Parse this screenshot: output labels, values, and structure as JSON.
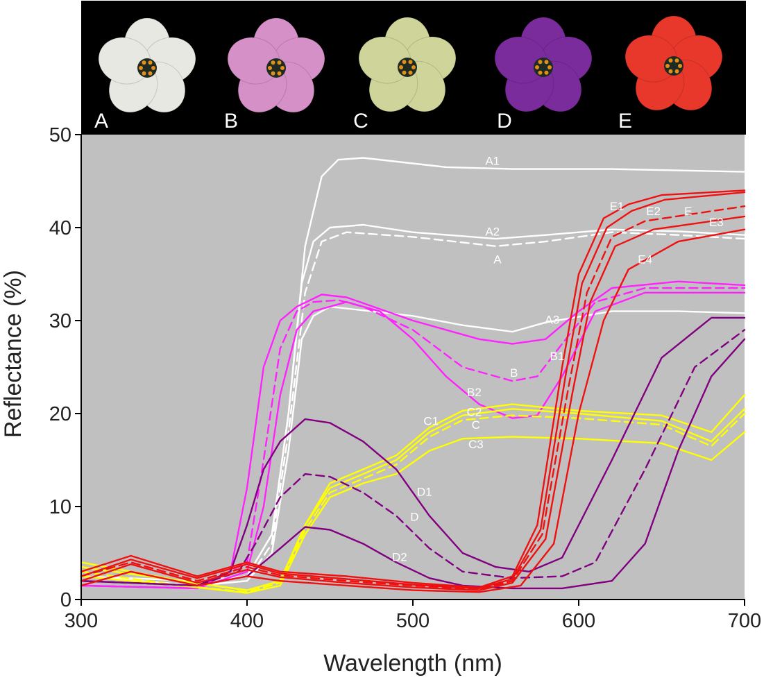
{
  "chart_data": {
    "type": "line",
    "xlabel": "Wavelength (nm)",
    "ylabel": "Reflectance (%)",
    "xlim": [
      300,
      700
    ],
    "ylim": [
      0,
      50
    ],
    "xticks": [
      "300",
      "400",
      "500",
      "600",
      "700"
    ],
    "yticks": [
      "0",
      "10",
      "20",
      "30",
      "40",
      "50"
    ],
    "grid": false,
    "background": "#c0c0c0",
    "panel_labels": [
      "A",
      "B",
      "C",
      "D",
      "E"
    ],
    "flower_colors": [
      "#e8e8e2",
      "#d690c8",
      "#cfd59a",
      "#7a2c9c",
      "#e8382c"
    ],
    "series": [
      {
        "name": "A1",
        "color": "#ffffff",
        "dash": false,
        "x": [
          300,
          370,
          400,
          415,
          425,
          435,
          445,
          455,
          470,
          520,
          560,
          620,
          700
        ],
        "y": [
          2.5,
          2,
          2.5,
          7,
          20,
          38,
          45.5,
          47.3,
          47.5,
          46.5,
          46.3,
          46.3,
          46
        ]
      },
      {
        "name": "A2",
        "color": "#ffffff",
        "dash": false,
        "x": [
          300,
          370,
          400,
          415,
          425,
          433,
          440,
          450,
          470,
          500,
          550,
          580,
          620,
          660,
          700
        ],
        "y": [
          2.5,
          1.5,
          2.5,
          7,
          20,
          34,
          38.5,
          40,
          40.3,
          39.5,
          38.8,
          39.2,
          39.8,
          39.6,
          39.2
        ]
      },
      {
        "name": "A",
        "color": "#ffffff",
        "dash": true,
        "x": [
          300,
          370,
          400,
          415,
          425,
          435,
          445,
          460,
          500,
          550,
          580,
          620,
          660,
          700
        ],
        "y": [
          2.5,
          1.5,
          2,
          6,
          18,
          33,
          38.5,
          39.5,
          39,
          38,
          38.5,
          39.5,
          39.2,
          38.8
        ]
      },
      {
        "name": "A3",
        "color": "#ffffff",
        "dash": false,
        "x": [
          300,
          370,
          400,
          415,
          425,
          433,
          440,
          450,
          500,
          530,
          560,
          580,
          620,
          660,
          700
        ],
        "y": [
          2,
          1.5,
          2,
          5,
          16,
          28,
          30.5,
          31.5,
          30.5,
          29.5,
          28.8,
          29.8,
          31,
          31,
          30.8
        ]
      },
      {
        "name": "B1",
        "color": "#ff22ff",
        "dash": false,
        "x": [
          300,
          370,
          390,
          400,
          410,
          420,
          430,
          445,
          460,
          500,
          540,
          560,
          580,
          600,
          620,
          660,
          700
        ],
        "y": [
          1.5,
          1.2,
          3,
          12,
          25,
          30,
          31.5,
          32.8,
          32.5,
          30,
          28,
          27.5,
          28,
          31,
          33.5,
          34.2,
          33.8
        ]
      },
      {
        "name": "B",
        "color": "#ff22ff",
        "dash": true,
        "x": [
          300,
          370,
          400,
          410,
          420,
          430,
          440,
          455,
          470,
          500,
          530,
          560,
          575,
          590,
          610,
          640,
          700
        ],
        "y": [
          1.5,
          1.2,
          4,
          15,
          27,
          31,
          32,
          32.2,
          31.5,
          29,
          25,
          23.5,
          24,
          27.5,
          32,
          33.5,
          33.5
        ]
      },
      {
        "name": "B2",
        "color": "#ff22ff",
        "dash": false,
        "x": [
          300,
          370,
          400,
          410,
          420,
          430,
          440,
          460,
          480,
          500,
          520,
          540,
          560,
          575,
          590,
          610,
          640,
          700
        ],
        "y": [
          1.5,
          1.2,
          3,
          10,
          22,
          29,
          31,
          32,
          31,
          28,
          24,
          21,
          19.5,
          19.8,
          24,
          31,
          33,
          33
        ]
      },
      {
        "name": "C1",
        "color": "#ffff00",
        "dash": false,
        "x": [
          300,
          360,
          400,
          420,
          435,
          450,
          470,
          490,
          510,
          530,
          560,
          600,
          650,
          680,
          700
        ],
        "y": [
          4,
          2,
          1,
          2,
          8,
          12.5,
          14,
          15.5,
          18.5,
          20.3,
          21,
          20.3,
          19.8,
          18,
          22
        ]
      },
      {
        "name": "C2",
        "color": "#ffff00",
        "dash": false,
        "x": [
          300,
          360,
          400,
          420,
          435,
          450,
          470,
          490,
          510,
          530,
          560,
          600,
          650,
          680,
          700
        ],
        "y": [
          3.5,
          2,
          1,
          2,
          8,
          12,
          13.5,
          15,
          18,
          19.8,
          20.5,
          20,
          19.2,
          17,
          20.5
        ]
      },
      {
        "name": "C",
        "color": "#ffff00",
        "dash": true,
        "x": [
          300,
          360,
          400,
          420,
          435,
          450,
          470,
          490,
          510,
          530,
          560,
          600,
          650,
          680,
          700
        ],
        "y": [
          3,
          1.5,
          0.8,
          1.8,
          7.5,
          11.5,
          13,
          14.5,
          17.5,
          19.3,
          19.8,
          19.5,
          18.8,
          16.5,
          20
        ]
      },
      {
        "name": "C3",
        "color": "#ffff00",
        "dash": false,
        "x": [
          300,
          360,
          400,
          420,
          435,
          450,
          470,
          490,
          510,
          530,
          560,
          600,
          650,
          680,
          700
        ],
        "y": [
          2.5,
          1.5,
          0.7,
          1.5,
          7,
          11,
          12.5,
          13.5,
          16,
          17.3,
          17.5,
          17.3,
          16.8,
          15,
          18
        ]
      },
      {
        "name": "D1",
        "color": "#800080",
        "dash": false,
        "x": [
          300,
          370,
          390,
          400,
          410,
          420,
          435,
          450,
          470,
          490,
          510,
          530,
          550,
          570,
          590,
          620,
          650,
          680,
          700
        ],
        "y": [
          2,
          1.5,
          3,
          8,
          14,
          17,
          19.4,
          19,
          17,
          14,
          9,
          5,
          3.5,
          3,
          4.5,
          15,
          26,
          30.3,
          30.3
        ]
      },
      {
        "name": "D",
        "color": "#800080",
        "dash": true,
        "x": [
          300,
          370,
          395,
          405,
          420,
          435,
          450,
          470,
          490,
          510,
          530,
          560,
          590,
          610,
          640,
          670,
          700
        ],
        "y": [
          2,
          1.5,
          3,
          6,
          11,
          13.5,
          13.2,
          11.5,
          9,
          5.5,
          3,
          2.3,
          2.5,
          4,
          14,
          25,
          29
        ]
      },
      {
        "name": "D2",
        "color": "#800080",
        "dash": false,
        "x": [
          300,
          370,
          400,
          420,
          435,
          450,
          470,
          490,
          510,
          530,
          560,
          590,
          620,
          640,
          660,
          680,
          700
        ],
        "y": [
          2,
          1.5,
          2.5,
          5.5,
          7.8,
          7.5,
          6,
          4,
          2.3,
          1.5,
          1.2,
          1.2,
          2,
          6,
          16,
          24,
          28
        ]
      },
      {
        "name": "E1",
        "color": "#ee1111",
        "dash": false,
        "x": [
          300,
          330,
          370,
          400,
          420,
          460,
          500,
          540,
          560,
          575,
          590,
          600,
          615,
          630,
          650,
          700
        ],
        "y": [
          3,
          4.7,
          2.5,
          4,
          3,
          2.5,
          1.8,
          1.3,
          2.5,
          8,
          25,
          35,
          41,
          42.5,
          43.5,
          44
        ]
      },
      {
        "name": "E2",
        "color": "#ee1111",
        "dash": false,
        "x": [
          300,
          330,
          370,
          400,
          420,
          460,
          500,
          540,
          560,
          577,
          592,
          602,
          617,
          632,
          652,
          700
        ],
        "y": [
          2.5,
          4.3,
          2.3,
          3.8,
          2.8,
          2.2,
          1.6,
          1.2,
          2.2,
          7.5,
          24,
          34,
          40,
          41.8,
          43,
          43.8
        ]
      },
      {
        "name": "E",
        "color": "#ee1111",
        "dash": true,
        "x": [
          300,
          330,
          370,
          400,
          420,
          460,
          500,
          540,
          560,
          578,
          594,
          605,
          620,
          640,
          700
        ],
        "y": [
          2.5,
          4,
          2,
          3.5,
          2.6,
          2,
          1.5,
          1.1,
          2,
          7,
          23,
          33,
          39,
          40.7,
          42.3
        ]
      },
      {
        "name": "E3",
        "color": "#ee1111",
        "dash": false,
        "x": [
          300,
          330,
          370,
          400,
          420,
          460,
          500,
          540,
          560,
          580,
          596,
          607,
          622,
          645,
          700
        ],
        "y": [
          2,
          3.8,
          1.8,
          3.2,
          2.4,
          1.8,
          1.3,
          1,
          1.8,
          6.5,
          22,
          32,
          38,
          39.8,
          41.2
        ]
      },
      {
        "name": "E4",
        "color": "#ee1111",
        "dash": false,
        "x": [
          300,
          330,
          370,
          400,
          420,
          460,
          500,
          540,
          565,
          585,
          600,
          615,
          630,
          660,
          700
        ],
        "y": [
          1.5,
          3,
          1.5,
          2.5,
          2,
          1.5,
          1,
          0.8,
          1.5,
          6,
          20,
          30,
          35.5,
          38.5,
          39.8
        ]
      }
    ],
    "annotations": [
      {
        "text": "A1",
        "x": 548,
        "y": 47.2
      },
      {
        "text": "A2",
        "x": 548,
        "y": 39.6
      },
      {
        "text": "A",
        "x": 551,
        "y": 36.6
      },
      {
        "text": "A3",
        "x": 584,
        "y": 30.1
      },
      {
        "text": "B1",
        "x": 587,
        "y": 26.2
      },
      {
        "text": "B",
        "x": 561,
        "y": 24.4
      },
      {
        "text": "B2",
        "x": 537,
        "y": 22.3
      },
      {
        "text": "C1",
        "x": 511,
        "y": 19.2
      },
      {
        "text": "C2",
        "x": 537,
        "y": 20.2
      },
      {
        "text": "C",
        "x": 538,
        "y": 18.8
      },
      {
        "text": "C3",
        "x": 538,
        "y": 16.7
      },
      {
        "text": "D1",
        "x": 507,
        "y": 11.6
      },
      {
        "text": "D",
        "x": 501,
        "y": 8.9
      },
      {
        "text": "D2",
        "x": 492,
        "y": 4.6
      },
      {
        "text": "E1",
        "x": 623,
        "y": 42.3
      },
      {
        "text": "E2",
        "x": 645,
        "y": 41.8
      },
      {
        "text": "E",
        "x": 666,
        "y": 41.8
      },
      {
        "text": "E3",
        "x": 683,
        "y": 40.6
      },
      {
        "text": "E4",
        "x": 640,
        "y": 36.6
      }
    ]
  }
}
